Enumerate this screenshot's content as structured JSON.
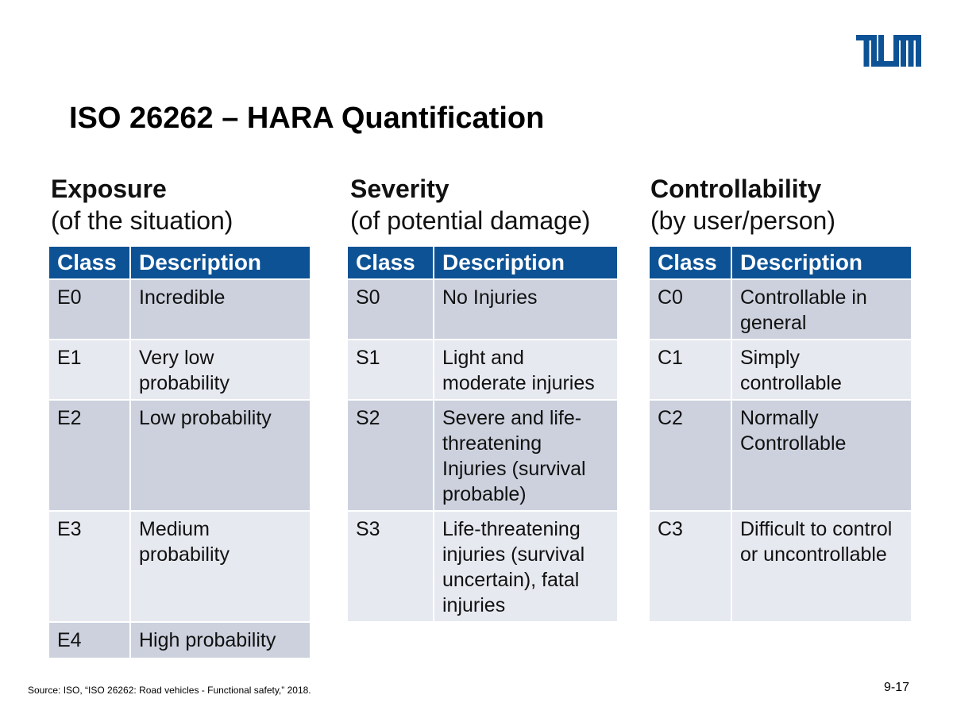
{
  "slide": {
    "title": "ISO 26262 – HARA Quantification",
    "logo": "TUM",
    "source": "Source: ISO, “ISO 26262: Road vehicles - Functional safety,” 2018.",
    "page_number": "9-17",
    "accent_color": "#0d5295",
    "row_color_dark": "#ccd1dd",
    "row_color_light": "#e7e9f0"
  },
  "columns": [
    {
      "heading": "Exposure",
      "subheading": "(of the situation)",
      "headers": [
        "Class",
        "Description"
      ],
      "rows": [
        {
          "cls": "E0",
          "desc": "Incredible"
        },
        {
          "cls": "E1",
          "desc": "Very low probability"
        },
        {
          "cls": "E2",
          "desc": "Low probability"
        },
        {
          "cls": "E3",
          "desc": "Medium probability"
        },
        {
          "cls": "E4",
          "desc": "High probability"
        }
      ]
    },
    {
      "heading": "Severity",
      "subheading": "(of potential damage)",
      "headers": [
        "Class",
        "Description"
      ],
      "rows": [
        {
          "cls": "S0",
          "desc": "No Injuries"
        },
        {
          "cls": "S1",
          "desc": "Light and moderate injuries"
        },
        {
          "cls": "S2",
          "desc": "Severe and life-threatening Injuries (survival probable)"
        },
        {
          "cls": "S3",
          "desc": "Life-threatening injuries (survival uncertain), fatal injuries"
        }
      ]
    },
    {
      "heading": "Controllability",
      "subheading": "(by user/person)",
      "headers": [
        "Class",
        "Description"
      ],
      "rows": [
        {
          "cls": "C0",
          "desc": "Controllable in general"
        },
        {
          "cls": "C1",
          "desc": "Simply controllable"
        },
        {
          "cls": "C2",
          "desc": "Normally Controllable"
        },
        {
          "cls": "C3",
          "desc": "Difficult to control or uncontrollable"
        }
      ]
    }
  ]
}
